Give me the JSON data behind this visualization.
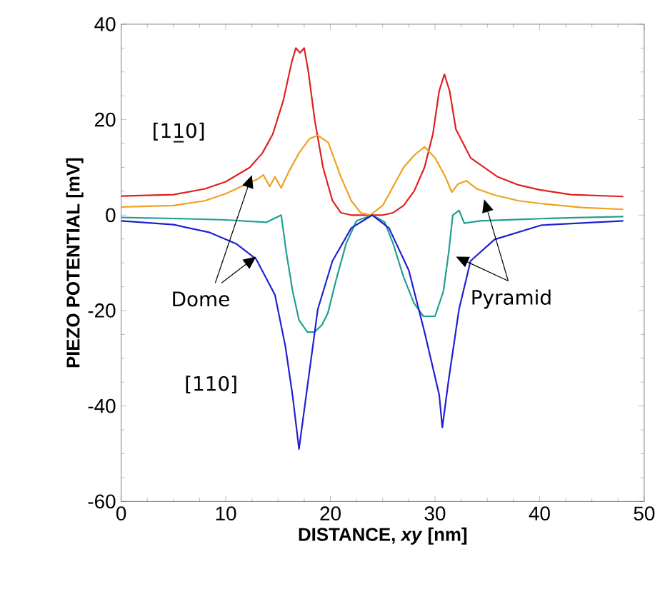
{
  "chart_data": {
    "type": "line",
    "xlabel": "DISTANCE, *xy* [nm]",
    "ylabel": "PIEZO POTENTIAL [mV]",
    "xlim": [
      0,
      50
    ],
    "ylim": [
      -60,
      40
    ],
    "xticks": [
      0,
      10,
      20,
      30,
      40,
      50
    ],
    "yticks": [
      -60,
      -40,
      -20,
      0,
      20,
      40
    ],
    "grid": false,
    "marker": "none",
    "line_style": "solid",
    "annotations": [
      "[11̲0]",
      {
        "text": "Dome",
        "x": 12.5,
        "y": 8.4
      },
      "[110]",
      {
        "text": "Pyramid",
        "x": 34.7,
        "y": 3.3
      }
    ],
    "series": [
      {
        "color": "#e02020",
        "x": [
          0,
          5,
          8,
          10,
          12.3,
          13.5,
          14.5,
          15.5,
          16.3,
          16.7,
          17.1,
          17.5,
          17.9,
          18.5,
          19.3,
          20.2,
          21,
          22,
          23,
          24,
          25,
          26,
          27,
          28,
          29,
          29.8,
          30.4,
          30.9,
          31.4,
          32,
          33.4,
          36,
          38,
          40,
          43,
          48
        ],
        "values": [
          4,
          4.3,
          5.5,
          7,
          10,
          13,
          17,
          24,
          32,
          35,
          34,
          35,
          30,
          20,
          10,
          3,
          0.5,
          0,
          0,
          0,
          0,
          0.5,
          2,
          5,
          10,
          17,
          26,
          29.5,
          26,
          18,
          12,
          8,
          6.3,
          5.3,
          4.3,
          3.9
        ]
      },
      {
        "color": "#f0a020",
        "x": [
          0,
          5,
          8,
          10,
          12,
          13,
          13.6,
          14.2,
          14.7,
          15.3,
          16,
          17,
          18,
          18.8,
          19.8,
          21,
          22,
          22.9,
          23.8,
          25,
          26,
          27,
          28,
          29,
          30,
          31,
          31.6,
          32.2,
          33,
          34,
          35.7,
          38,
          40.2,
          44,
          48
        ],
        "values": [
          1.7,
          2,
          3,
          4.5,
          6.5,
          7.5,
          8.4,
          6,
          8,
          5.7,
          9,
          13,
          16,
          16.7,
          15.2,
          8,
          3,
          0.5,
          0,
          2,
          6,
          10,
          12.5,
          14.3,
          12,
          8,
          4.8,
          6.5,
          7.2,
          5.5,
          4.2,
          3,
          2.4,
          1.6,
          1.2
        ]
      },
      {
        "color": "#20a090",
        "x": [
          0,
          5,
          10,
          13.9,
          15.3,
          15.8,
          16.4,
          17,
          17.8,
          18.5,
          19.2,
          19.75,
          20.5,
          21.5,
          22.5,
          24,
          25.2,
          26,
          27,
          28,
          28.9,
          30,
          30.8,
          31.3,
          31.7,
          32.3,
          32.8,
          34.3,
          38,
          42,
          48
        ],
        "values": [
          -0.5,
          -0.7,
          -1,
          -1.5,
          0,
          -8,
          -16,
          -22,
          -24.5,
          -24.5,
          -23,
          -20.6,
          -14,
          -6,
          -1.2,
          0,
          -1.5,
          -6,
          -13,
          -18.5,
          -21.2,
          -21.2,
          -16,
          -8,
          0,
          1,
          -1.7,
          -1.2,
          -0.9,
          -0.6,
          -0.3
        ]
      },
      {
        "color": "#2020d0",
        "x": [
          0,
          5,
          8.4,
          11,
          12.9,
          14.7,
          15.7,
          16.4,
          17,
          17.7,
          18.8,
          20.2,
          22,
          24,
          25.6,
          27.5,
          29,
          30.4,
          30.7,
          31.3,
          32.3,
          33.4,
          35.7,
          40.2,
          48
        ],
        "values": [
          -1.2,
          -2,
          -3.6,
          -6,
          -9.2,
          -16.7,
          -27.5,
          -38,
          -49,
          -37.6,
          -19.7,
          -9.6,
          -2.7,
          0,
          -2.7,
          -11.6,
          -24.5,
          -37.6,
          -44.5,
          -34.6,
          -19.7,
          -9.6,
          -5.1,
          -2.1,
          -1.2
        ]
      }
    ]
  }
}
